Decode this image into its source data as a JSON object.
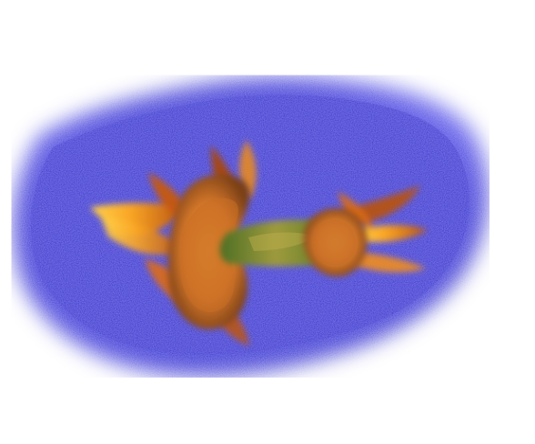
{
  "image": {
    "subject": "",
    "colors": {
      "background": "#ffffff",
      "blue_field": "#2e23d6",
      "blue_field_light": "#4a3ff0",
      "petal_orange": "#f08a16",
      "petal_yellow": "#ffd24a",
      "seed_orange": "#d87a2b",
      "seed_brown": "#7a3f16",
      "stem_green": "#6f8f2f"
    }
  }
}
